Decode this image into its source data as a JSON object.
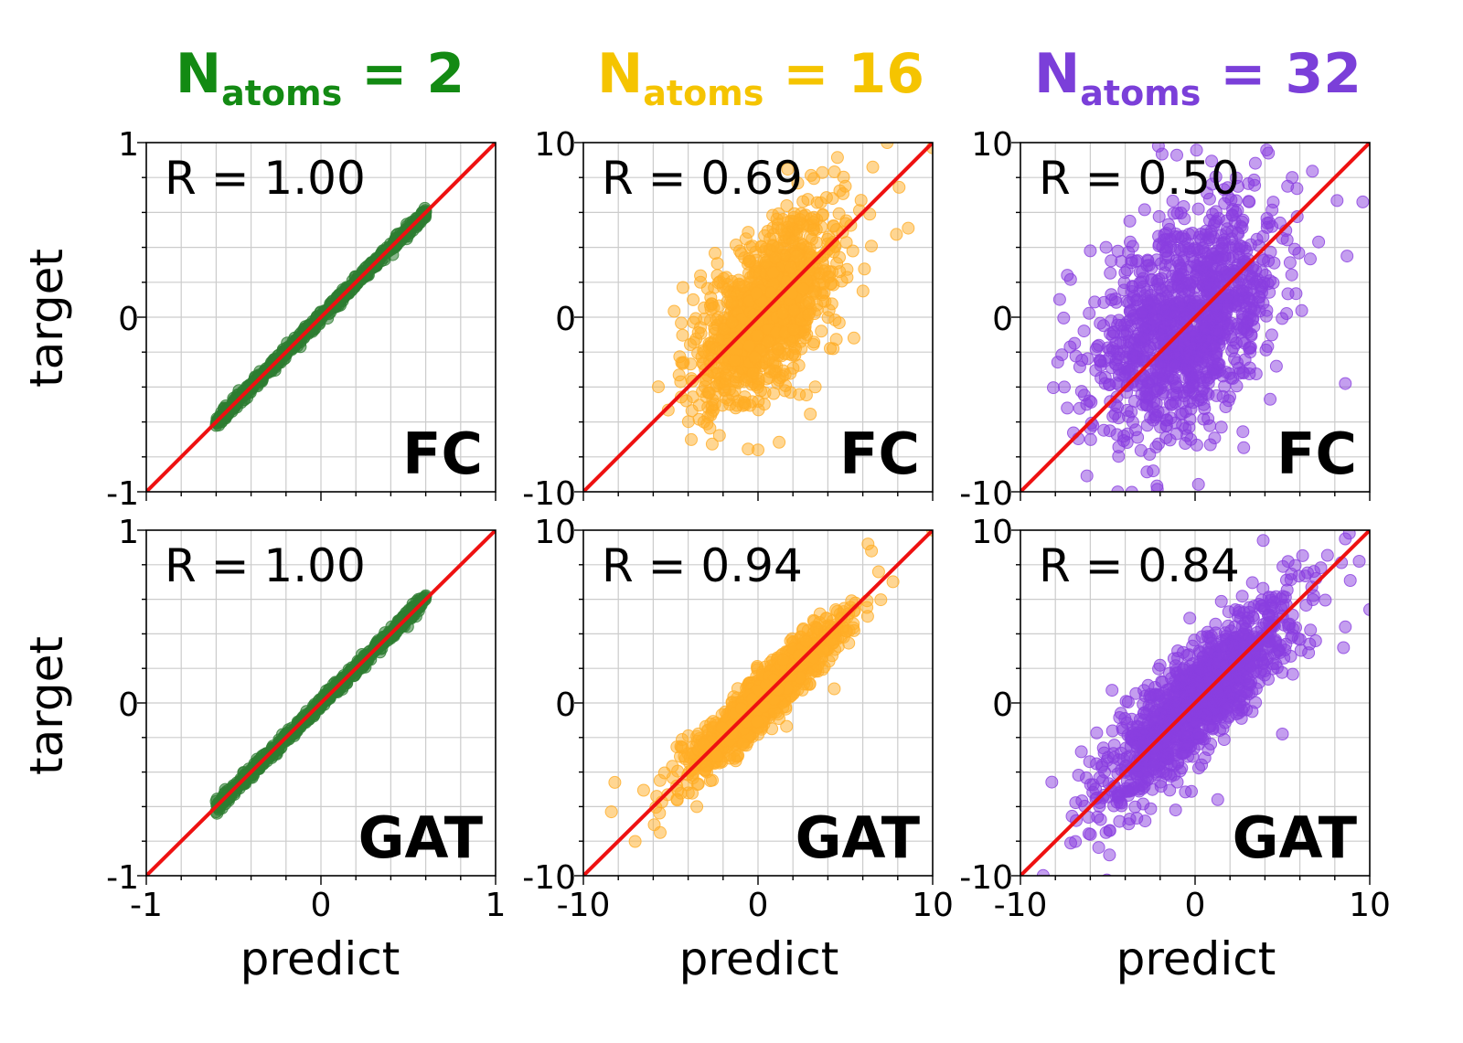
{
  "figure": {
    "column_titles": [
      {
        "main": "N",
        "sub": "atoms",
        "rest": " = 2",
        "color": "#138a13"
      },
      {
        "main": "N",
        "sub": "atoms",
        "rest": " = 16",
        "color": "#f5c400"
      },
      {
        "main": "N",
        "sub": "atoms",
        "rest": " = 32",
        "color": "#7b3fd9"
      }
    ],
    "row_ylabel": "target",
    "col_xlabel": "predict"
  },
  "chart_data": [
    {
      "type": "scatter",
      "row": "FC",
      "col_title": "N_atoms = 2",
      "model_label": "FC",
      "r_label": "R = 1.00",
      "color": "#2e7d32",
      "xlim": [
        -1,
        1
      ],
      "ylim": [
        -1,
        1
      ],
      "xticks": [
        -1,
        0,
        1
      ],
      "yticks": [
        -1,
        0,
        1
      ],
      "tick_labels": [
        "-1",
        "0",
        "1"
      ],
      "x_range": [
        -0.6,
        0.6
      ],
      "spread": 0.015,
      "slope": 1.0,
      "extreme_points": [
        [
          -0.6,
          -0.62
        ],
        [
          0.58,
          0.6
        ]
      ],
      "grid": true,
      "reference_line": "y = x"
    },
    {
      "type": "scatter",
      "row": "FC",
      "col_title": "N_atoms = 16",
      "model_label": "FC",
      "r_label": "R = 0.69",
      "color": "#ffad26",
      "xlim": [
        -10,
        10
      ],
      "ylim": [
        -10,
        10
      ],
      "xticks": [
        -10,
        0,
        10
      ],
      "yticks": [
        -10,
        0,
        10
      ],
      "tick_labels": [
        "-10",
        "0",
        "10"
      ],
      "x_center": 0.5,
      "x_sd": 2.0,
      "y_sd": 2.2,
      "slope": 0.75,
      "extreme_points": [
        [
          -4.3,
          1.7
        ],
        [
          -3.1,
          -6.0
        ],
        [
          0.0,
          -7.6
        ],
        [
          6.4,
          5.9
        ],
        [
          5.0,
          7.5
        ],
        [
          10.0,
          9.7
        ],
        [
          7.4,
          10.0
        ],
        [
          8.6,
          5.1
        ],
        [
          4.3,
          -1.8
        ]
      ],
      "grid": true,
      "reference_line": "y = x"
    },
    {
      "type": "scatter",
      "row": "FC",
      "col_title": "N_atoms = 32",
      "model_label": "FC",
      "r_label": "R = 0.50",
      "color": "#8a3ee0",
      "xlim": [
        -10,
        10
      ],
      "ylim": [
        -10,
        10
      ],
      "xticks": [
        -10,
        0,
        10
      ],
      "yticks": [
        -10,
        0,
        10
      ],
      "tick_labels": [
        "-10",
        "0",
        "10"
      ],
      "x_center": -0.5,
      "x_sd": 2.6,
      "y_sd": 3.0,
      "slope": 0.55,
      "extreme_points": [
        [
          -6.9,
          -1.5
        ],
        [
          -6.0,
          3.8
        ],
        [
          -5.1,
          4.0
        ],
        [
          -2.1,
          9.8
        ],
        [
          4.2,
          9.4
        ],
        [
          5.3,
          7.5
        ],
        [
          9.6,
          6.6
        ],
        [
          8.7,
          3.5
        ],
        [
          8.6,
          -3.8
        ],
        [
          -2.4,
          -8.8
        ],
        [
          1.5,
          -6.3
        ],
        [
          4.3,
          -4.7
        ]
      ],
      "grid": true,
      "reference_line": "y = x"
    },
    {
      "type": "scatter",
      "row": "GAT",
      "col_title": "N_atoms = 2",
      "model_label": "GAT",
      "r_label": "R = 1.00",
      "color": "#2e7d32",
      "xlim": [
        -1,
        1
      ],
      "ylim": [
        -1,
        1
      ],
      "xticks": [
        -1,
        0,
        1
      ],
      "yticks": [
        -1,
        0,
        1
      ],
      "tick_labels": [
        "-1",
        "0",
        "1"
      ],
      "x_range": [
        -0.6,
        0.6
      ],
      "spread": 0.018,
      "slope": 1.0,
      "extreme_points": [
        [
          -0.6,
          -0.63
        ],
        [
          0.6,
          0.62
        ]
      ],
      "grid": true,
      "reference_line": "y = x"
    },
    {
      "type": "scatter",
      "row": "GAT",
      "col_title": "N_atoms = 16",
      "model_label": "GAT",
      "r_label": "R = 0.94",
      "color": "#ffad26",
      "xlim": [
        -10,
        10
      ],
      "ylim": [
        -10,
        10
      ],
      "xticks": [
        -10,
        0,
        10
      ],
      "yticks": [
        -10,
        0,
        10
      ],
      "tick_labels": [
        "-10",
        "0",
        "10"
      ],
      "x_center": 0.3,
      "x_sd": 2.2,
      "y_sd": 0.8,
      "slope": 0.95,
      "extreme_points": [
        [
          -8.4,
          -6.3
        ],
        [
          -8.2,
          -4.6
        ],
        [
          -5.8,
          -5.4
        ],
        [
          -5.6,
          -7.5
        ],
        [
          -3.5,
          -6.0
        ],
        [
          6.5,
          8.8
        ],
        [
          10.0,
          10.0
        ],
        [
          6.3,
          9.2
        ],
        [
          5.5,
          5.3
        ]
      ],
      "grid": true,
      "reference_line": "y = x"
    },
    {
      "type": "scatter",
      "row": "GAT",
      "col_title": "N_atoms = 32",
      "model_label": "GAT",
      "r_label": "R = 0.84",
      "color": "#8a3ee0",
      "xlim": [
        -10,
        10
      ],
      "ylim": [
        -10,
        10
      ],
      "xticks": [
        -10,
        0,
        10
      ],
      "yticks": [
        -10,
        0,
        10
      ],
      "tick_labels": [
        "-10",
        "0",
        "10"
      ],
      "x_center": 0.0,
      "x_sd": 2.8,
      "y_sd": 1.6,
      "slope": 0.9,
      "extreme_points": [
        [
          -4.9,
          -8.8
        ],
        [
          -3.8,
          -7.0
        ],
        [
          1.3,
          -5.6
        ],
        [
          5.0,
          -1.8
        ],
        [
          8.6,
          9.5
        ],
        [
          9.4,
          8.2
        ],
        [
          6.9,
          3.6
        ],
        [
          8.6,
          4.4
        ],
        [
          8.5,
          3.2
        ],
        [
          10.0,
          5.4
        ],
        [
          3.9,
          9.4
        ],
        [
          -5.1,
          -7.5
        ]
      ],
      "grid": true,
      "reference_line": "y = x"
    }
  ]
}
